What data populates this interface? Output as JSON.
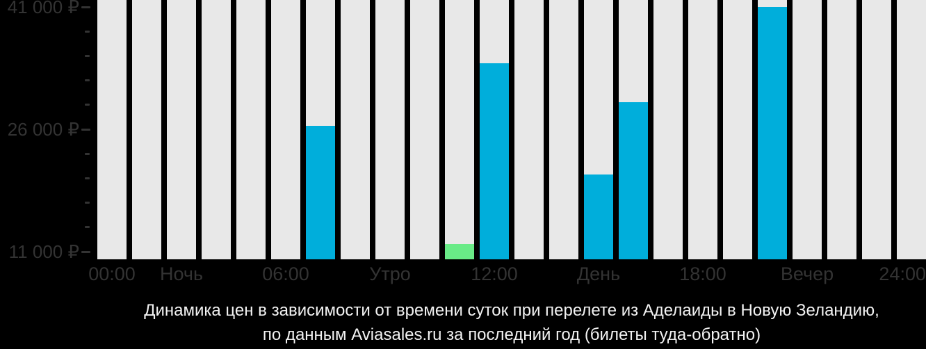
{
  "colors": {
    "background": "#000000",
    "slot_bar": "#e8e8e8",
    "price_bar": "#00aedb",
    "min_price_bar": "#69eb87",
    "axis_text": "#333333",
    "caption_text": "#f2f2f2"
  },
  "caption": {
    "line1": "Динамика цен в зависимости от времени суток при перелете из Аделаиды в Новую Зеландию,",
    "line2": "по данным Aviasales.ru за последний год (билеты туда-обратно)"
  },
  "chart_data": {
    "type": "bar",
    "title": "Динамика цен в зависимости от времени суток при перелете из Аделаиды в Новую Зеландию, по данным Aviasales.ru за последний год (билеты туда-обратно)",
    "currency_symbol": "₽",
    "values_by_hour": [
      null,
      null,
      null,
      null,
      null,
      null,
      26450,
      null,
      null,
      null,
      11900,
      34100,
      null,
      null,
      20500,
      29300,
      null,
      null,
      null,
      41000,
      null,
      null,
      null,
      null
    ],
    "min_price_hour": 10,
    "min_price_value": 11900,
    "yticks": [
      {
        "label": "41 000 ₽",
        "value": 41000
      },
      {
        "label": "26 000 ₽",
        "value": 26000
      },
      {
        "label": "11 000 ₽",
        "value": 11000
      }
    ],
    "ytick_minor_step": 3000,
    "ytick_label_range": [
      11000,
      41000
    ],
    "ylim": [
      10000,
      41900
    ],
    "xticks": [
      {
        "label": "00:00",
        "hour": 0
      },
      {
        "label": "Ночь",
        "hour": 2
      },
      {
        "label": "06:00",
        "hour": 5
      },
      {
        "label": "Утро",
        "hour": 8
      },
      {
        "label": "12:00",
        "hour": 11
      },
      {
        "label": "День",
        "hour": 14
      },
      {
        "label": "18:00",
        "hour": 17
      },
      {
        "label": "Вечер",
        "hour": 20
      },
      {
        "label": "24:00",
        "hour": 23
      }
    ],
    "grid": false,
    "legend": null
  }
}
